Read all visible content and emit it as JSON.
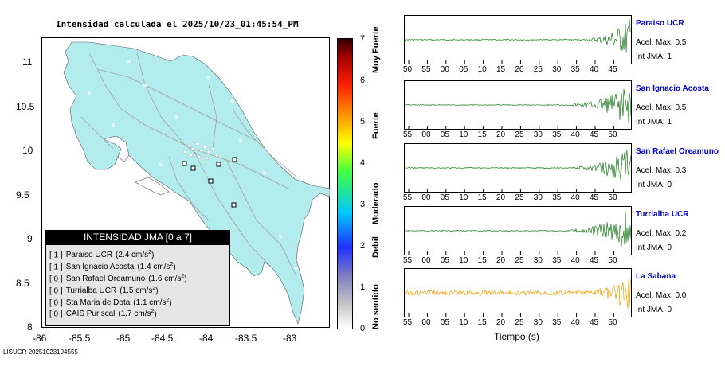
{
  "map": {
    "title": "Intensidad calculada el 2025/10/23_01:45:54_PM",
    "y_ticks": [
      "11",
      "10.5",
      "10",
      "9.5",
      "9",
      "8.5",
      "8"
    ],
    "x_ticks": [
      "-86",
      "-85.5",
      "-85",
      "-84.5",
      "-84",
      "-83.5",
      "-83"
    ],
    "land_color": "#b2ecec"
  },
  "legend": {
    "header": "INTENSIDAD JMA [0 a 7]",
    "rows": [
      {
        "code": "[ 1 ]",
        "name": "Paraiso UCR",
        "value": "(2.4 cm/s",
        "sup": "2",
        "close": ")"
      },
      {
        "code": "[ 1 ]",
        "name": "San Ignacio Acosta",
        "value": "(1.4 cm/s",
        "sup": "2",
        "close": ")"
      },
      {
        "code": "[ 0 ]",
        "name": "San Rafael Oreamuno",
        "value": "(1.6 cm/s",
        "sup": "2",
        "close": ")"
      },
      {
        "code": "[ 0 ]",
        "name": "Turrialba UCR",
        "value": "(1.5 cm/s",
        "sup": "2",
        "close": ")"
      },
      {
        "code": "[ 0 ]",
        "name": "Sta Maria de Dota",
        "value": "(1.1 cm/s",
        "sup": "2",
        "close": ")"
      },
      {
        "code": "[ 0 ]",
        "name": "CAIS Puriscal",
        "value": "(1.7 cm/s",
        "sup": "2",
        "close": ")"
      }
    ]
  },
  "colorbar": {
    "numbers": [
      "7",
      "6",
      "5",
      "4",
      "3",
      "2",
      "1",
      "0"
    ],
    "words": [
      "Muy Fuerte",
      "Fuerte",
      "Moderado",
      "Debil",
      "No sentido"
    ]
  },
  "stations": [
    {
      "name": "Paraiso UCR",
      "acel": "Acel. Max. 0.5",
      "jma": "Int JMA: 1",
      "color": "#1a7a1a",
      "ticks": [
        "50",
        "55",
        "00",
        "05",
        "10",
        "15",
        "20",
        "25",
        "30",
        "35",
        "40",
        "45"
      ],
      "onset": 0.81
    },
    {
      "name": "San Ignacio Acosta",
      "acel": "Acel. Max. 0.5",
      "jma": "Int JMA: 1",
      "color": "#1a7a1a",
      "ticks": [
        "55",
        "00",
        "05",
        "10",
        "15",
        "20",
        "25",
        "30",
        "35",
        "40",
        "45",
        "50"
      ],
      "onset": 0.74
    },
    {
      "name": "San Rafael Oreamuno",
      "acel": "Acel. Max. 0.3",
      "jma": "Int JMA: 0",
      "color": "#1a7a1a",
      "ticks": [
        "55",
        "00",
        "05",
        "10",
        "15",
        "20",
        "25",
        "30",
        "35",
        "40",
        "45",
        "50"
      ],
      "onset": 0.76
    },
    {
      "name": "Turrialba UCR",
      "acel": "Acel. Max. 0.2",
      "jma": "Int JMA: 0",
      "color": "#1a7a1a",
      "ticks": [
        "55",
        "00",
        "05",
        "10",
        "15",
        "20",
        "25",
        "30",
        "35",
        "40",
        "45",
        "50"
      ],
      "onset": 0.73
    },
    {
      "name": "La Sabana",
      "acel": "Acel. Max. 0.0",
      "jma": "Int JMA: 0",
      "color": "#f0a000",
      "ticks": [
        "55",
        "00",
        "05",
        "10",
        "15",
        "20",
        "25",
        "30",
        "35",
        "40",
        "45",
        "50"
      ],
      "onset": 0.0
    }
  ],
  "time_axis_label": "Tiempo (s)",
  "footer": "LISUCR 20251023194555"
}
